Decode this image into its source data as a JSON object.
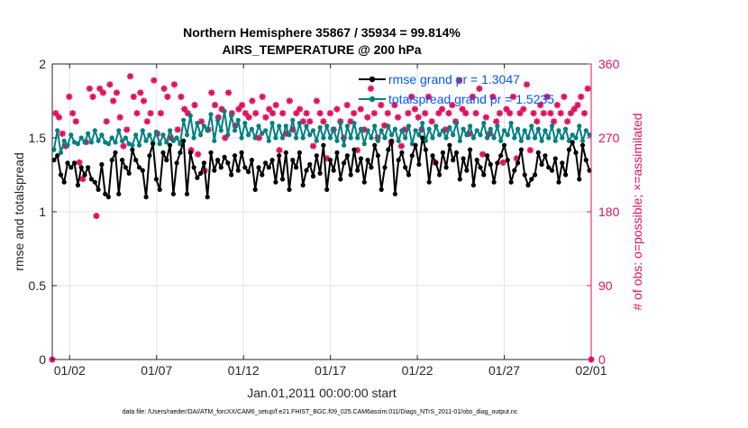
{
  "chart_data": {
    "type": "line",
    "title_line1": "Northern Hemisphere 35867 / 35934 = 99.814%",
    "title_line2": "AIRS_TEMPERATURE @ 200 hPa",
    "xlabel": "Jan.01,2011 00:00:00 start",
    "ylabel_left": "rmse and totalspread",
    "ylabel_right": "# of obs: o=possible; ×=assimilated",
    "xlim": [
      0,
      31
    ],
    "ylim_left": [
      0,
      2
    ],
    "ylim_right": [
      0,
      360
    ],
    "x_tick_values": [
      1,
      6,
      11,
      16,
      21,
      26,
      31
    ],
    "x_tick_labels": [
      "01/02",
      "01/07",
      "01/12",
      "01/17",
      "01/22",
      "01/27",
      "02/01"
    ],
    "y_left_ticks": [
      "0",
      "0.5",
      "1",
      "1.5",
      "2"
    ],
    "y_left_tick_values": [
      0,
      0.5,
      1,
      1.5,
      2
    ],
    "y_right_ticks": [
      "0",
      "90",
      "180",
      "270",
      "360"
    ],
    "y_right_tick_values": [
      0,
      90,
      180,
      270,
      360
    ],
    "grid": true,
    "legend_position": "top-right",
    "colors": {
      "rmse": "#000000",
      "spread": "#008080",
      "obs": "#e0115f",
      "axis": "#262626",
      "grid": "#e3e3e3",
      "legend_text": "#0055ff"
    },
    "series": [
      {
        "name": "rmse grand pr = 1.3047",
        "axis": "left",
        "values": [
          1.35,
          1.38,
          1.25,
          1.2,
          1.33,
          1.3,
          1.33,
          1.18,
          1.3,
          1.25,
          1.3,
          1.22,
          1.2,
          1.15,
          1.32,
          1.12,
          1.1,
          1.35,
          1.4,
          1.12,
          1.35,
          1.3,
          1.26,
          1.42,
          1.35,
          1.3,
          1.28,
          1.1,
          1.38,
          1.46,
          1.22,
          1.15,
          1.4,
          1.35,
          1.45,
          1.12,
          1.33,
          1.4,
          1.48,
          1.12,
          1.4,
          1.3,
          1.23,
          1.26,
          1.33,
          1.1,
          1.4,
          1.28,
          1.35,
          1.3,
          1.37,
          1.33,
          1.25,
          1.38,
          1.28,
          1.4,
          1.3,
          1.27,
          1.35,
          1.15,
          1.3,
          1.25,
          1.33,
          1.3,
          1.35,
          1.2,
          1.38,
          1.22,
          1.4,
          1.15,
          1.35,
          1.3,
          1.4,
          1.18,
          1.28,
          1.32,
          1.24,
          1.38,
          1.26,
          1.45,
          1.15,
          1.35,
          1.28,
          1.4,
          1.22,
          1.33,
          1.38,
          1.25,
          1.42,
          1.28,
          1.36,
          1.2,
          1.35,
          1.3,
          1.45,
          1.38,
          1.15,
          1.3,
          1.42,
          1.48,
          1.12,
          1.35,
          1.4,
          1.3,
          1.25,
          1.38,
          1.45,
          1.32,
          1.5,
          1.42,
          1.2,
          1.38,
          1.33,
          1.25,
          1.4,
          1.3,
          1.45,
          1.35,
          1.4,
          1.22,
          1.36,
          1.28,
          1.42,
          1.18,
          1.35,
          1.3,
          1.25,
          1.38,
          1.32,
          1.2,
          1.33,
          1.38,
          1.45,
          1.35,
          1.2,
          1.28,
          1.33,
          1.42,
          1.25,
          1.18,
          1.22,
          1.25,
          1.4,
          1.32,
          1.38,
          1.3,
          1.28,
          1.36,
          1.2,
          1.33,
          1.25,
          1.42,
          1.47,
          1.4,
          1.22,
          1.45,
          1.35,
          1.28
        ]
      },
      {
        "name": "totalspread grand pr = 1.5235",
        "axis": "left",
        "values": [
          1.42,
          1.55,
          1.4,
          1.48,
          1.45,
          1.52,
          1.47,
          1.46,
          1.5,
          1.47,
          1.53,
          1.47,
          1.55,
          1.48,
          1.52,
          1.47,
          1.46,
          1.5,
          1.47,
          1.55,
          1.48,
          1.5,
          1.46,
          1.45,
          1.52,
          1.45,
          1.55,
          1.48,
          1.52,
          1.47,
          1.54,
          1.46,
          1.52,
          1.47,
          1.55,
          1.48,
          1.5,
          1.46,
          1.62,
          1.52,
          1.65,
          1.5,
          1.6,
          1.52,
          1.58,
          1.55,
          1.66,
          1.48,
          1.62,
          1.55,
          1.68,
          1.52,
          1.65,
          1.55,
          1.62,
          1.5,
          1.6,
          1.52,
          1.56,
          1.5,
          1.58,
          1.53,
          1.55,
          1.48,
          1.6,
          1.5,
          1.58,
          1.5,
          1.58,
          1.52,
          1.62,
          1.5,
          1.6,
          1.5,
          1.58,
          1.52,
          1.55,
          1.48,
          1.57,
          1.5,
          1.58,
          1.5,
          1.56,
          1.48,
          1.6,
          1.45,
          1.58,
          1.5,
          1.6,
          1.5,
          1.56,
          1.46,
          1.55,
          1.5,
          1.58,
          1.48,
          1.55,
          1.5,
          1.58,
          1.52,
          1.56,
          1.48,
          1.55,
          1.5,
          1.58,
          1.46,
          1.55,
          1.52,
          1.6,
          1.48,
          1.56,
          1.5,
          1.58,
          1.52,
          1.55,
          1.5,
          1.57,
          1.52,
          1.6,
          1.48,
          1.56,
          1.52,
          1.58,
          1.5,
          1.55,
          1.52,
          1.6,
          1.5,
          1.56,
          1.5,
          1.58,
          1.48,
          1.55,
          1.52,
          1.6,
          1.5,
          1.56,
          1.48,
          1.55,
          1.5,
          1.58,
          1.5,
          1.56,
          1.48,
          1.55,
          1.5,
          1.58,
          1.48,
          1.55,
          1.5,
          1.56,
          1.48,
          1.52,
          1.5,
          1.58,
          1.48,
          1.55,
          1.52
        ]
      },
      {
        "name": "observations assimilated",
        "axis": "right",
        "values": [
          0,
          300,
          295,
          275,
          260,
          320,
          300,
          290,
          240,
          220,
          265,
          330,
          320,
          175,
          330,
          325,
          290,
          335,
          315,
          325,
          295,
          260,
          280,
          345,
          320,
          300,
          325,
          315,
          290,
          300,
          340,
          275,
          300,
          330,
          320,
          270,
          335,
          280,
          320,
          305,
          300,
          255,
          310,
          250,
          290,
          230,
          280,
          325,
          310,
          295,
          305,
          270,
          325,
          300,
          285,
          305,
          310,
          300,
          295,
          315,
          300,
          270,
          320,
          295,
          305,
          300,
          310,
          255,
          300,
          275,
          315,
          280,
          300,
          305,
          290,
          300,
          290,
          260,
          315,
          300,
          290,
          245,
          300,
          280,
          305,
          290,
          270,
          310,
          290,
          300,
          255,
          305,
          280,
          295,
          330,
          300,
          270,
          310,
          285,
          300,
          265,
          310,
          295,
          260,
          280,
          300,
          320,
          305,
          295,
          280,
          300,
          320,
          290,
          240,
          300,
          305,
          280,
          300,
          310,
          290,
          340,
          305,
          300,
          275,
          320,
          300,
          330,
          250,
          295,
          275,
          320,
          290,
          300,
          240,
          305,
          300,
          320,
          245,
          300,
          305,
          335,
          255,
          300,
          290,
          310,
          300,
          320,
          300,
          290,
          310,
          300,
          320,
          290,
          300,
          305,
          310,
          320,
          300,
          330,
          0
        ]
      }
    ],
    "footer": "data file: /Users/raeder/DAI/ATM_forcXX/CAM6_setup/f.e21.FHIST_BGC.f09_025.CAM6assim.011/Diags_NTrS_2011-01/obs_diag_output.nc"
  }
}
